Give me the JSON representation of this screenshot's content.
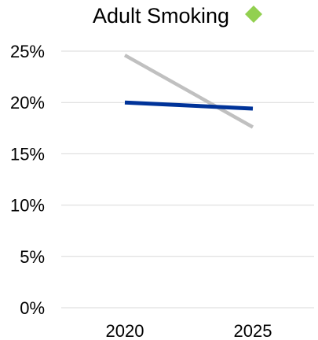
{
  "chart_data": {
    "type": "line",
    "title": "Adult Smoking",
    "title_marker": {
      "shape": "diamond",
      "color": "#92D050"
    },
    "x": [
      "2020",
      "2025"
    ],
    "y_ticks": [
      "0%",
      "5%",
      "10%",
      "15%",
      "20%",
      "25%"
    ],
    "ylim": [
      0,
      25
    ],
    "grid": true,
    "legend": "none",
    "series": [
      {
        "color": "#C0C0C0",
        "values": [
          24.6,
          17.6
        ]
      },
      {
        "color": "#003399",
        "values": [
          20.0,
          19.4
        ]
      }
    ]
  }
}
